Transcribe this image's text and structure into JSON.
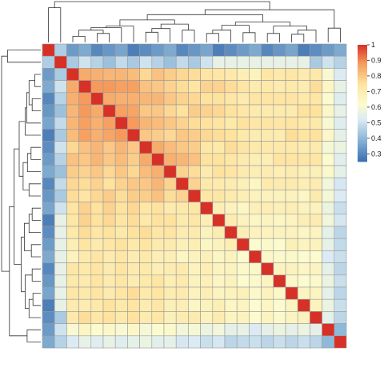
{
  "chart_data": {
    "type": "heatmap",
    "title": "",
    "xlabel": "",
    "ylabel": "",
    "n": 25,
    "color_scale": {
      "min": 0.25,
      "max": 1.0,
      "stops": [
        [
          0.25,
          "#3b6fb0"
        ],
        [
          0.4,
          "#8fb9d8"
        ],
        [
          0.52,
          "#dcebf3"
        ],
        [
          0.62,
          "#fbfbcf"
        ],
        [
          0.75,
          "#fee39f"
        ],
        [
          0.88,
          "#f59a5c"
        ],
        [
          1.0,
          "#d73027"
        ]
      ]
    },
    "legend": {
      "placement": "right",
      "ticks": [
        {
          "value": 1.0,
          "label": "1"
        },
        {
          "value": 0.9,
          "label": "0.9"
        },
        {
          "value": 0.8,
          "label": "0.8"
        },
        {
          "value": 0.7,
          "label": "0.7"
        },
        {
          "value": 0.6,
          "label": "0.6"
        },
        {
          "value": 0.5,
          "label": "0.5"
        },
        {
          "value": 0.4,
          "label": "0.4"
        },
        {
          "value": 0.3,
          "label": "0.3"
        }
      ]
    },
    "cell_border_color": "#9a9a9a",
    "dendrogram_color": "#333333"
  }
}
